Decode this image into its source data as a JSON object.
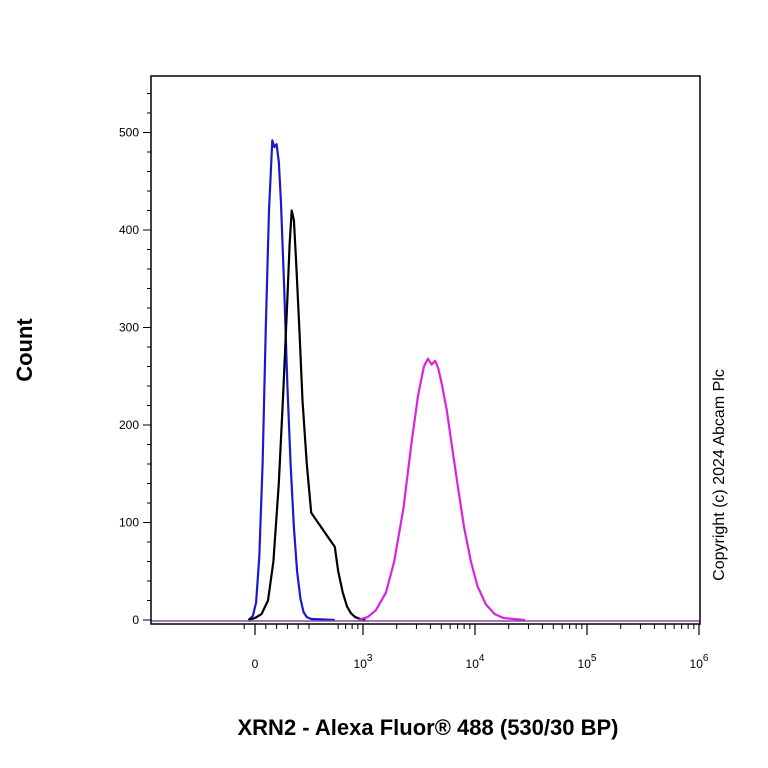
{
  "chart_data": {
    "type": "line",
    "title": "",
    "xlabel": "XRN2 - Alexa Fluor® 488 (530/30 BP)",
    "ylabel": "Count",
    "x_scale": "biexponential",
    "x_ticks": [
      {
        "value": 0,
        "base": "0",
        "exp": ""
      },
      {
        "value": 1000,
        "base": "10",
        "exp": "3"
      },
      {
        "value": 10000,
        "base": "10",
        "exp": "4"
      },
      {
        "value": 100000,
        "base": "10",
        "exp": "5"
      },
      {
        "value": 1000000,
        "base": "10",
        "exp": "6"
      }
    ],
    "y_ticks": [
      0,
      100,
      200,
      300,
      400,
      500
    ],
    "ylim": [
      0,
      555
    ],
    "grid": false,
    "legend": "none",
    "series": [
      {
        "color": "#1a1acc",
        "x": [
          -60,
          -20,
          10,
          40,
          70,
          100,
          130,
          160,
          180,
          200,
          220,
          240,
          270,
          300,
          330,
          360,
          390,
          420,
          450,
          480,
          520,
          560
        ],
        "y": [
          0,
          4,
          18,
          65,
          160,
          300,
          420,
          492,
          485,
          488,
          470,
          430,
          340,
          240,
          160,
          95,
          50,
          22,
          8,
          3,
          1,
          0
        ]
      },
      {
        "color": "#000000",
        "x": [
          -60,
          0,
          60,
          120,
          170,
          220,
          260,
          300,
          320,
          340,
          360,
          380,
          410,
          440,
          480,
          520,
          560,
          600,
          660,
          720,
          780,
          850,
          950,
          1050
        ],
        "y": [
          0,
          2,
          6,
          20,
          60,
          140,
          230,
          330,
          385,
          420,
          410,
          370,
          300,
          225,
          160,
          110,
          75,
          50,
          28,
          14,
          7,
          3,
          1,
          0
        ]
      },
      {
        "color": "#dd22dd",
        "x": [
          900,
          1100,
          1300,
          1600,
          1900,
          2300,
          2700,
          3100,
          3500,
          3800,
          4100,
          4400,
          4700,
          5100,
          5600,
          6200,
          7000,
          8000,
          9200,
          10500,
          12500,
          15000,
          18000,
          22000,
          28000
        ],
        "y": [
          0,
          3,
          10,
          28,
          60,
          115,
          180,
          230,
          260,
          268,
          262,
          266,
          258,
          240,
          215,
          180,
          138,
          95,
          60,
          35,
          16,
          6,
          2,
          1,
          0
        ]
      }
    ]
  },
  "copyright": "Copyright (c) 2024 Abcam Plc"
}
